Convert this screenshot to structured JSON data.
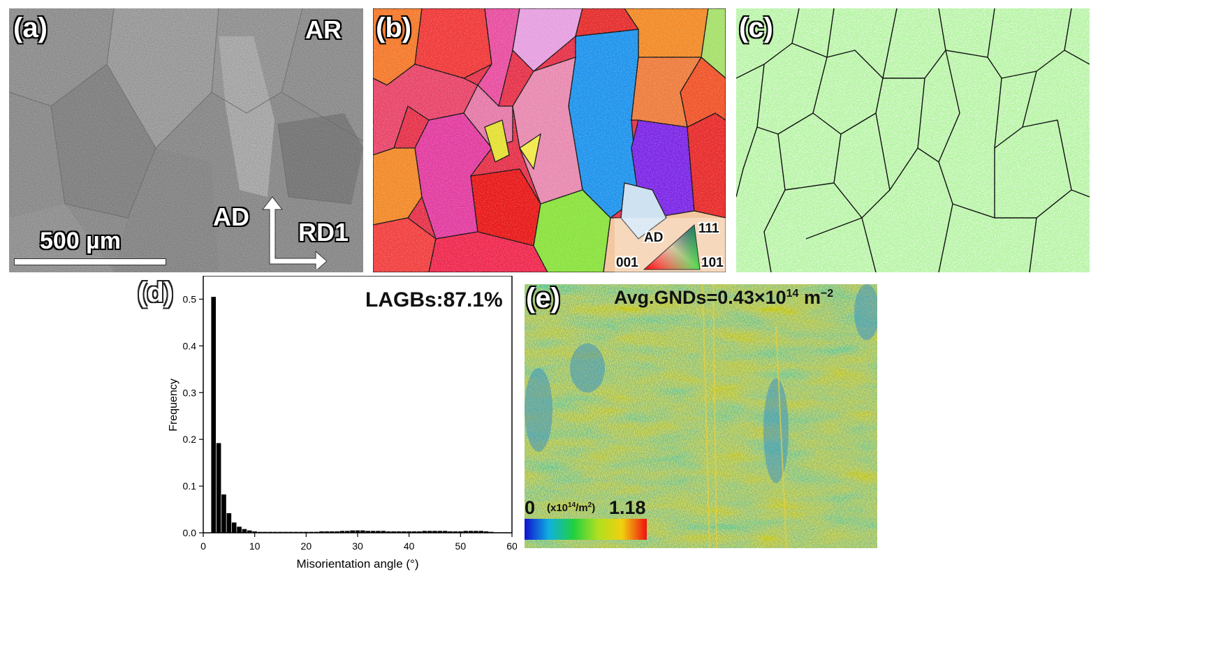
{
  "panel_a": {
    "label": "(a)",
    "tag": "AR",
    "scale_bar": "500 µm",
    "axis_vertical": "AD",
    "axis_horizontal": "RD1"
  },
  "panel_b": {
    "label": "(b)",
    "legend_title": "AD",
    "pole_111": "111",
    "pole_001": "001",
    "pole_101": "101"
  },
  "panel_c": {
    "label": "(c)"
  },
  "panel_d": {
    "label": "(d)",
    "annotation": "LAGBs:87.1%"
  },
  "panel_e": {
    "label": "(e)",
    "annotation_prefix": "Avg.GNDs=0.43×10",
    "annotation_exp": "14",
    "annotation_suffix": " m",
    "annotation_suffix_exp": "−2",
    "scale_min": "0",
    "scale_unit_prefix": "(x10",
    "scale_unit_exp": "14",
    "scale_unit_suffix": "/m",
    "scale_unit_suffix_exp": "2",
    "scale_unit_close": ")",
    "scale_max": "1.18"
  },
  "chart_data": {
    "type": "bar",
    "xlabel": "Misorientation angle (°)",
    "ylabel": "Frequency",
    "xlim": [
      0,
      60
    ],
    "ylim": [
      0,
      0.55
    ],
    "xticks": [
      0,
      10,
      20,
      30,
      40,
      50,
      60
    ],
    "yticks": [
      0.0,
      0.1,
      0.2,
      0.3,
      0.4,
      0.5
    ],
    "bin_width": 1,
    "x": [
      2,
      3,
      4,
      5,
      6,
      7,
      8,
      9,
      10,
      11,
      12,
      13,
      14,
      15,
      16,
      17,
      18,
      19,
      20,
      21,
      22,
      23,
      24,
      25,
      26,
      27,
      28,
      29,
      30,
      31,
      32,
      33,
      34,
      35,
      36,
      37,
      38,
      39,
      40,
      41,
      42,
      43,
      44,
      45,
      46,
      47,
      48,
      49,
      50,
      51,
      52,
      53,
      54,
      55,
      56,
      57,
      58,
      59
    ],
    "values": [
      0.505,
      0.192,
      0.082,
      0.042,
      0.022,
      0.013,
      0.008,
      0.005,
      0.003,
      0.002,
      0.002,
      0.002,
      0.002,
      0.002,
      0.002,
      0.002,
      0.002,
      0.002,
      0.002,
      0.002,
      0.002,
      0.003,
      0.003,
      0.003,
      0.003,
      0.004,
      0.004,
      0.005,
      0.005,
      0.005,
      0.004,
      0.004,
      0.004,
      0.004,
      0.003,
      0.003,
      0.003,
      0.003,
      0.003,
      0.003,
      0.003,
      0.004,
      0.004,
      0.004,
      0.004,
      0.004,
      0.003,
      0.003,
      0.003,
      0.004,
      0.004,
      0.004,
      0.004,
      0.003,
      0.002,
      0.001,
      0.001,
      0.001
    ]
  }
}
